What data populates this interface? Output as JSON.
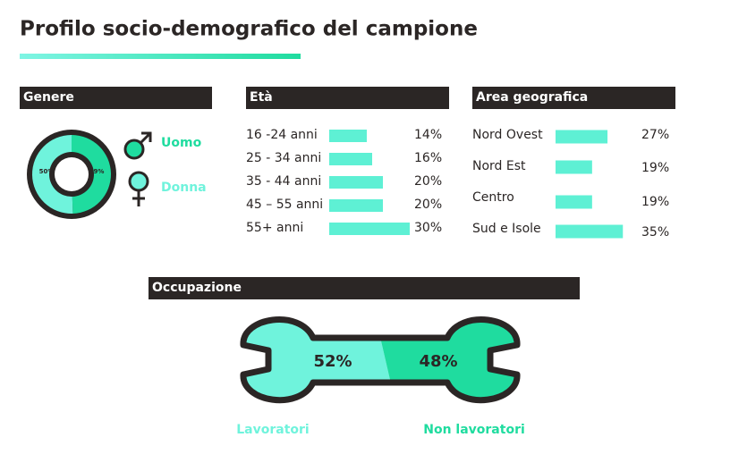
{
  "title": "Profilo socio-demografico del campione",
  "chart_data": [
    {
      "type": "donut",
      "title": "Genere",
      "categories": [
        "Uomo",
        "Donna"
      ],
      "values": [
        49,
        50
      ],
      "value_labels": [
        "49%",
        "50%"
      ],
      "colors": [
        "#1fdc9f",
        "#6ff3dc"
      ]
    },
    {
      "type": "bar",
      "title": "Età",
      "categories": [
        "16 -24 anni",
        "25 - 34 anni",
        "35 - 44 anni",
        "45 – 55 anni",
        "55+ anni"
      ],
      "values": [
        14,
        16,
        20,
        20,
        30
      ],
      "value_labels": [
        "14%",
        "16%",
        "20%",
        "20%",
        "30%"
      ],
      "color": "#5ef0d4"
    },
    {
      "type": "bar",
      "title": "Area geografica",
      "categories": [
        "Nord Ovest",
        "Nord Est",
        "Centro",
        "Sud e Isole"
      ],
      "values": [
        27,
        19,
        19,
        35
      ],
      "value_labels": [
        "27%",
        "19%",
        "19%",
        "35%"
      ],
      "color": "#5ef0d4"
    },
    {
      "type": "wrench",
      "title": "Occupazione",
      "categories": [
        "Lavoratori",
        "Non lavoratori"
      ],
      "values": [
        52,
        48
      ],
      "value_labels": [
        "52%",
        "48%"
      ],
      "colors": [
        "#6ff3dc",
        "#1fdc9f"
      ]
    }
  ]
}
